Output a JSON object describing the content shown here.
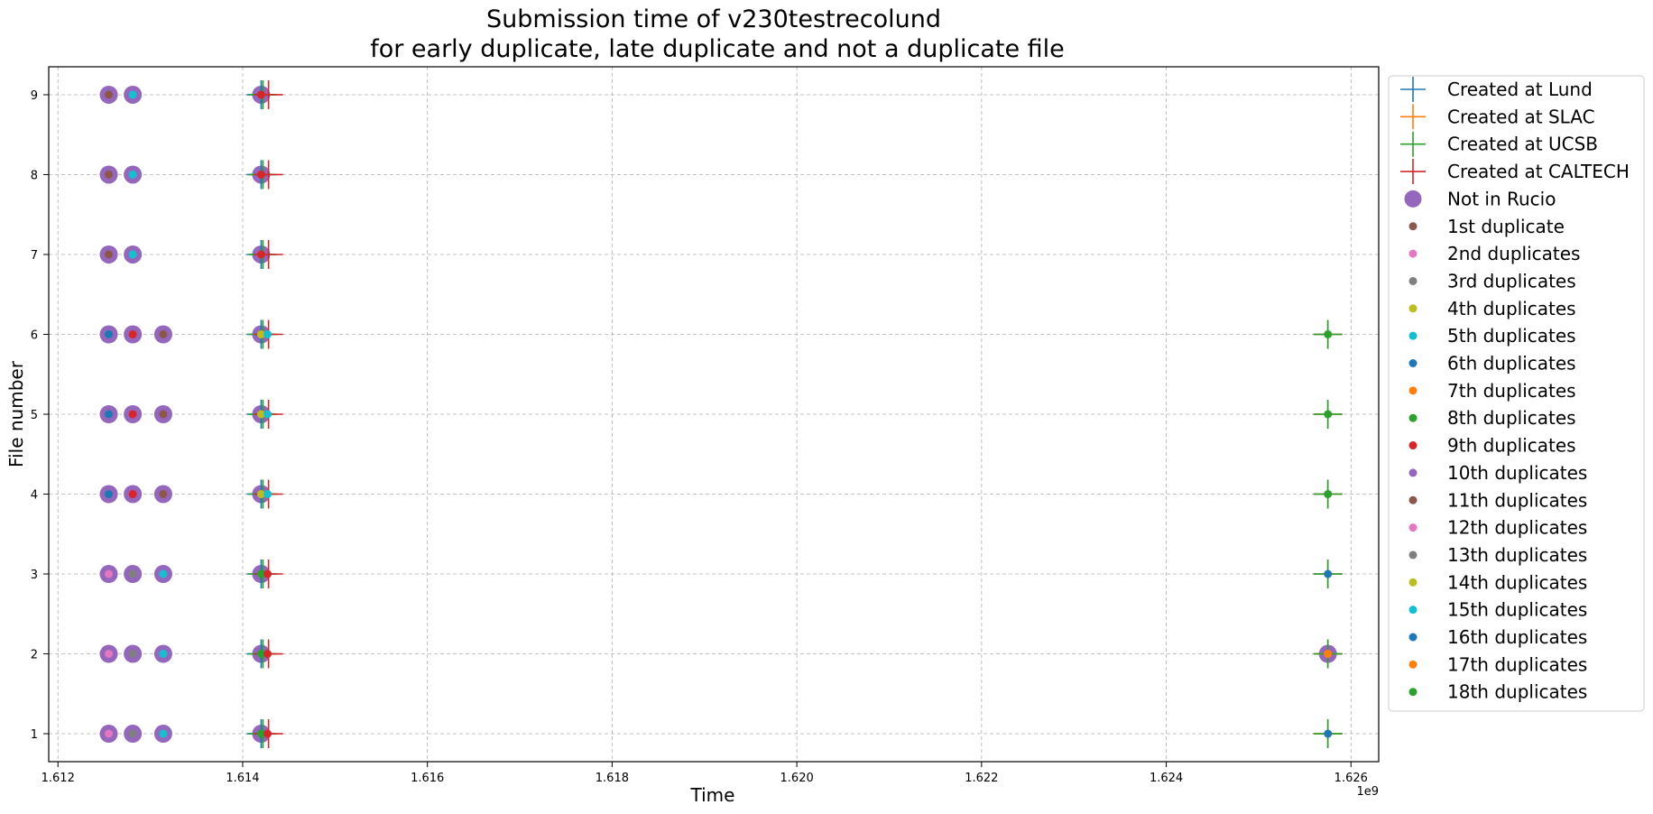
{
  "chart_data": {
    "type": "scatter",
    "title_line1": "Submission time of v230testrecolund",
    "title_line2": "for early duplicate, late duplicate and not a duplicate file",
    "xlabel": "Time",
    "ylabel": "File number",
    "x_offset_label": "1e9",
    "x_unit_scale": 1000000000,
    "xlim": [
      1.6119,
      1.6263
    ],
    "ylim": [
      0.65,
      9.35
    ],
    "x_ticks": [
      1.612,
      1.614,
      1.616,
      1.618,
      1.62,
      1.622,
      1.624,
      1.626
    ],
    "x_tick_labels": [
      "1.612",
      "1.614",
      "1.616",
      "1.618",
      "1.620",
      "1.622",
      "1.624",
      "1.626"
    ],
    "y_ticks": [
      1,
      2,
      3,
      4,
      5,
      6,
      7,
      8,
      9
    ],
    "y_tick_labels": [
      "1",
      "2",
      "3",
      "4",
      "5",
      "6",
      "7",
      "8",
      "9"
    ],
    "grid": true,
    "legend_position": "outside-right",
    "colors": {
      "tab_blue": "#1f77b4",
      "tab_orange": "#ff7f0e",
      "tab_green": "#2ca02c",
      "tab_red": "#d62728",
      "tab_purple": "#9467bd",
      "tab_brown": "#8c564b",
      "tab_pink": "#e377c2",
      "tab_gray": "#7f7f7f",
      "tab_olive": "#bcbd22",
      "tab_cyan": "#17becf"
    },
    "legend": [
      {
        "label": "Created at Lund",
        "marker": "plus",
        "color": "#1f77b4"
      },
      {
        "label": "Created at SLAC",
        "marker": "plus",
        "color": "#ff7f0e"
      },
      {
        "label": "Created at UCSB",
        "marker": "plus",
        "color": "#2ca02c"
      },
      {
        "label": "Created at CALTECH",
        "marker": "plus",
        "color": "#d62728"
      },
      {
        "label": "Not in Rucio",
        "marker": "big-circle",
        "color": "#9467bd"
      },
      {
        "label": "1st duplicate",
        "marker": "dot",
        "color": "#8c564b"
      },
      {
        "label": "2nd duplicates",
        "marker": "dot",
        "color": "#e377c2"
      },
      {
        "label": "3rd duplicates",
        "marker": "dot",
        "color": "#7f7f7f"
      },
      {
        "label": "4th duplicates",
        "marker": "dot",
        "color": "#bcbd22"
      },
      {
        "label": "5th duplicates",
        "marker": "dot",
        "color": "#17becf"
      },
      {
        "label": "6th duplicates",
        "marker": "dot",
        "color": "#1f77b4"
      },
      {
        "label": "7th duplicates",
        "marker": "dot",
        "color": "#ff7f0e"
      },
      {
        "label": "8th duplicates",
        "marker": "dot",
        "color": "#2ca02c"
      },
      {
        "label": "9th duplicates",
        "marker": "dot",
        "color": "#d62728"
      },
      {
        "label": "10th duplicates",
        "marker": "dot",
        "color": "#9467bd"
      },
      {
        "label": "11th duplicates",
        "marker": "dot",
        "color": "#8c564b"
      },
      {
        "label": "12th duplicates",
        "marker": "dot",
        "color": "#e377c2"
      },
      {
        "label": "13th duplicates",
        "marker": "dot",
        "color": "#7f7f7f"
      },
      {
        "label": "14th duplicates",
        "marker": "dot",
        "color": "#bcbd22"
      },
      {
        "label": "15th duplicates",
        "marker": "dot",
        "color": "#17becf"
      },
      {
        "label": "16th duplicates",
        "marker": "dot",
        "color": "#1f77b4"
      },
      {
        "label": "17th duplicates",
        "marker": "dot",
        "color": "#ff7f0e"
      },
      {
        "label": "18th duplicates",
        "marker": "dot",
        "color": "#2ca02c"
      }
    ],
    "series": [
      {
        "name": "Created at Lund",
        "marker": "plus",
        "color": "#1f77b4",
        "points": [
          [
            1.6142,
            9
          ],
          [
            1.6142,
            8
          ],
          [
            1.6142,
            7
          ],
          [
            1.6142,
            6
          ],
          [
            1.6142,
            5
          ],
          [
            1.6142,
            4
          ],
          [
            1.6142,
            3
          ],
          [
            1.6142,
            2
          ],
          [
            1.6142,
            1
          ],
          [
            1.62575,
            6
          ],
          [
            1.62575,
            5
          ],
          [
            1.62575,
            4
          ],
          [
            1.62575,
            3
          ],
          [
            1.62575,
            2
          ],
          [
            1.62575,
            1
          ]
        ]
      },
      {
        "name": "Created at SLAC",
        "marker": "plus",
        "color": "#ff7f0e",
        "points": [
          [
            1.62575,
            6
          ],
          [
            1.62575,
            5
          ],
          [
            1.62575,
            4
          ],
          [
            1.62575,
            3
          ],
          [
            1.62575,
            2
          ],
          [
            1.62575,
            1
          ]
        ]
      },
      {
        "name": "Created at UCSB",
        "marker": "plus",
        "color": "#2ca02c",
        "points": [
          [
            1.61422,
            9
          ],
          [
            1.61422,
            8
          ],
          [
            1.61422,
            7
          ],
          [
            1.61422,
            6
          ],
          [
            1.61422,
            5
          ],
          [
            1.61422,
            4
          ],
          [
            1.61422,
            3
          ],
          [
            1.61422,
            2
          ],
          [
            1.61422,
            1
          ],
          [
            1.62575,
            6
          ],
          [
            1.62575,
            5
          ],
          [
            1.62575,
            4
          ],
          [
            1.62575,
            3
          ],
          [
            1.62575,
            2
          ],
          [
            1.62575,
            1
          ]
        ]
      },
      {
        "name": "Created at CALTECH",
        "marker": "plus",
        "color": "#d62728",
        "points": [
          [
            1.61428,
            9
          ],
          [
            1.61428,
            8
          ],
          [
            1.61428,
            7
          ],
          [
            1.61428,
            6
          ],
          [
            1.61428,
            5
          ],
          [
            1.61428,
            4
          ],
          [
            1.61428,
            3
          ],
          [
            1.61428,
            2
          ],
          [
            1.61428,
            1
          ]
        ]
      },
      {
        "name": "Not in Rucio",
        "marker": "big-circle",
        "color": "#9467bd",
        "points": [
          [
            1.61255,
            9
          ],
          [
            1.61281,
            9
          ],
          [
            1.6142,
            9
          ],
          [
            1.61255,
            8
          ],
          [
            1.61281,
            8
          ],
          [
            1.6142,
            8
          ],
          [
            1.61255,
            7
          ],
          [
            1.61281,
            7
          ],
          [
            1.6142,
            7
          ],
          [
            1.61255,
            6
          ],
          [
            1.61281,
            6
          ],
          [
            1.61314,
            6
          ],
          [
            1.6142,
            6
          ],
          [
            1.61255,
            5
          ],
          [
            1.61281,
            5
          ],
          [
            1.61314,
            5
          ],
          [
            1.6142,
            5
          ],
          [
            1.61255,
            4
          ],
          [
            1.61281,
            4
          ],
          [
            1.61314,
            4
          ],
          [
            1.6142,
            4
          ],
          [
            1.61255,
            3
          ],
          [
            1.61281,
            3
          ],
          [
            1.61314,
            3
          ],
          [
            1.6142,
            3
          ],
          [
            1.61255,
            2
          ],
          [
            1.61281,
            2
          ],
          [
            1.61314,
            2
          ],
          [
            1.6142,
            2
          ],
          [
            1.61255,
            1
          ],
          [
            1.61281,
            1
          ],
          [
            1.61314,
            1
          ],
          [
            1.6142,
            1
          ],
          [
            1.62575,
            2
          ]
        ]
      },
      {
        "name": "1st duplicate",
        "marker": "dot",
        "color": "#8c564b",
        "points": [
          [
            1.61255,
            9
          ],
          [
            1.61255,
            8
          ],
          [
            1.61255,
            7
          ],
          [
            1.61314,
            6
          ],
          [
            1.61314,
            5
          ],
          [
            1.61314,
            4
          ]
        ]
      },
      {
        "name": "2nd duplicates",
        "marker": "dot",
        "color": "#e377c2",
        "points": [
          [
            1.61255,
            3
          ],
          [
            1.61255,
            2
          ],
          [
            1.61255,
            1
          ]
        ]
      },
      {
        "name": "3rd duplicates",
        "marker": "dot",
        "color": "#7f7f7f",
        "points": [
          [
            1.61281,
            3
          ],
          [
            1.61281,
            2
          ],
          [
            1.61281,
            1
          ]
        ]
      },
      {
        "name": "4th duplicates",
        "marker": "dot",
        "color": "#bcbd22",
        "points": [
          [
            1.6142,
            6
          ],
          [
            1.6142,
            5
          ],
          [
            1.6142,
            4
          ]
        ]
      },
      {
        "name": "5th duplicates",
        "marker": "dot",
        "color": "#17becf",
        "points": [
          [
            1.61281,
            9
          ],
          [
            1.61281,
            8
          ],
          [
            1.61281,
            7
          ],
          [
            1.61314,
            3
          ],
          [
            1.61314,
            2
          ],
          [
            1.61314,
            1
          ],
          [
            1.61427,
            6
          ],
          [
            1.61427,
            5
          ],
          [
            1.61427,
            4
          ]
        ]
      },
      {
        "name": "6th duplicates",
        "marker": "dot",
        "color": "#1f77b4",
        "points": [
          [
            1.61255,
            6
          ],
          [
            1.61255,
            5
          ],
          [
            1.61255,
            4
          ],
          [
            1.62575,
            3
          ],
          [
            1.62575,
            1
          ]
        ]
      },
      {
        "name": "7th duplicates",
        "marker": "dot",
        "color": "#ff7f0e",
        "points": [
          [
            1.62575,
            2
          ]
        ]
      },
      {
        "name": "8th duplicates",
        "marker": "dot",
        "color": "#2ca02c",
        "points": [
          [
            1.6142,
            3
          ],
          [
            1.6142,
            2
          ],
          [
            1.6142,
            1
          ],
          [
            1.62575,
            6
          ],
          [
            1.62575,
            5
          ],
          [
            1.62575,
            4
          ]
        ]
      },
      {
        "name": "9th duplicates",
        "marker": "dot",
        "color": "#d62728",
        "points": [
          [
            1.6142,
            9
          ],
          [
            1.6142,
            8
          ],
          [
            1.6142,
            7
          ],
          [
            1.61281,
            6
          ],
          [
            1.61281,
            5
          ],
          [
            1.61281,
            4
          ],
          [
            1.61427,
            3
          ],
          [
            1.61427,
            2
          ],
          [
            1.61427,
            1
          ]
        ]
      },
      {
        "name": "10th duplicates",
        "marker": "dot",
        "color": "#9467bd",
        "points": []
      },
      {
        "name": "11th duplicates",
        "marker": "dot",
        "color": "#8c564b",
        "points": []
      },
      {
        "name": "12th duplicates",
        "marker": "dot",
        "color": "#e377c2",
        "points": []
      },
      {
        "name": "13th duplicates",
        "marker": "dot",
        "color": "#7f7f7f",
        "points": []
      },
      {
        "name": "14th duplicates",
        "marker": "dot",
        "color": "#bcbd22",
        "points": []
      },
      {
        "name": "15th duplicates",
        "marker": "dot",
        "color": "#17becf",
        "points": []
      },
      {
        "name": "16th duplicates",
        "marker": "dot",
        "color": "#1f77b4",
        "points": []
      },
      {
        "name": "17th duplicates",
        "marker": "dot",
        "color": "#ff7f0e",
        "points": []
      },
      {
        "name": "18th duplicates",
        "marker": "dot",
        "color": "#2ca02c",
        "points": []
      }
    ]
  }
}
